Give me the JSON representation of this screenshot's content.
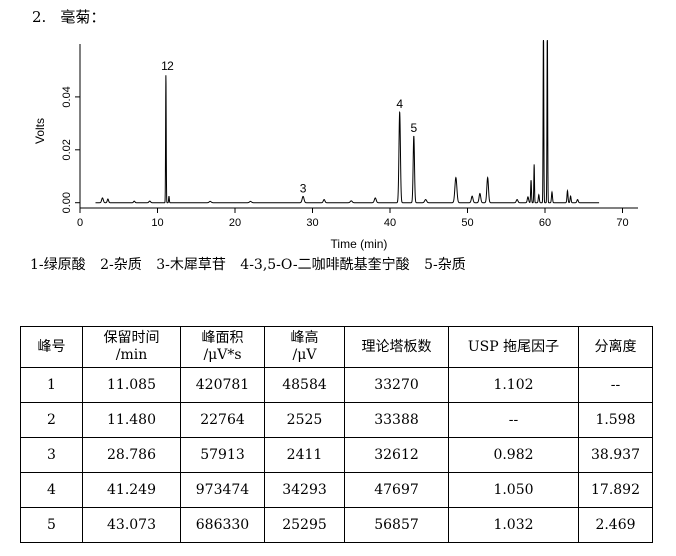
{
  "section": {
    "number": "2.",
    "title": "毫菊："
  },
  "chart_data": {
    "type": "line",
    "xlabel": "Time (min)",
    "ylabel": "Volts",
    "xlim": [
      0,
      72
    ],
    "ylim": [
      -0.002,
      0.06
    ],
    "x_ticks": [
      0,
      10,
      20,
      30,
      40,
      50,
      60,
      70
    ],
    "y_ticks": [
      0.0,
      0.02,
      0.04
    ],
    "y_tick_labels": [
      "0.00",
      "0.02",
      "0.04"
    ],
    "peak_labels": [
      {
        "text": "1",
        "x": 11.085,
        "y": 0.0486
      },
      {
        "text": "2",
        "x": 11.48,
        "y": 0.0486
      },
      {
        "text": "3",
        "x": 28.786,
        "y": 0.0024
      },
      {
        "text": "4",
        "x": 41.249,
        "y": 0.0343
      },
      {
        "text": "5",
        "x": 43.073,
        "y": 0.0253
      }
    ],
    "baseline": 0.0,
    "peaks": [
      {
        "rt": 2.9,
        "h": 0.0018,
        "w": 0.25
      },
      {
        "rt": 3.6,
        "h": 0.0014,
        "w": 0.2
      },
      {
        "rt": 7.0,
        "h": 0.0006,
        "w": 0.2
      },
      {
        "rt": 9.0,
        "h": 0.0006,
        "w": 0.25
      },
      {
        "rt": 11.085,
        "h": 0.0486,
        "w": 0.09
      },
      {
        "rt": 11.48,
        "h": 0.0025,
        "w": 0.1
      },
      {
        "rt": 16.8,
        "h": 0.0005,
        "w": 0.3
      },
      {
        "rt": 22.0,
        "h": 0.0005,
        "w": 0.3
      },
      {
        "rt": 28.786,
        "h": 0.0024,
        "w": 0.28
      },
      {
        "rt": 31.5,
        "h": 0.0012,
        "w": 0.25
      },
      {
        "rt": 35.0,
        "h": 0.0007,
        "w": 0.3
      },
      {
        "rt": 38.1,
        "h": 0.0018,
        "w": 0.28
      },
      {
        "rt": 41.249,
        "h": 0.0343,
        "w": 0.22
      },
      {
        "rt": 43.073,
        "h": 0.0253,
        "w": 0.2
      },
      {
        "rt": 44.6,
        "h": 0.0012,
        "w": 0.3
      },
      {
        "rt": 48.5,
        "h": 0.0095,
        "w": 0.3
      },
      {
        "rt": 50.6,
        "h": 0.0025,
        "w": 0.25
      },
      {
        "rt": 51.6,
        "h": 0.0035,
        "w": 0.25
      },
      {
        "rt": 52.6,
        "h": 0.0095,
        "w": 0.25
      },
      {
        "rt": 56.4,
        "h": 0.0012,
        "w": 0.25
      },
      {
        "rt": 57.8,
        "h": 0.0022,
        "w": 0.2
      },
      {
        "rt": 58.2,
        "h": 0.0085,
        "w": 0.12
      },
      {
        "rt": 58.6,
        "h": 0.0145,
        "w": 0.1
      },
      {
        "rt": 59.2,
        "h": 0.003,
        "w": 0.15
      },
      {
        "rt": 59.8,
        "h": 0.068,
        "w": 0.1
      },
      {
        "rt": 60.3,
        "h": 0.068,
        "w": 0.1
      },
      {
        "rt": 60.9,
        "h": 0.004,
        "w": 0.15
      },
      {
        "rt": 62.9,
        "h": 0.0045,
        "w": 0.15
      },
      {
        "rt": 63.3,
        "h": 0.0025,
        "w": 0.15
      },
      {
        "rt": 64.2,
        "h": 0.0012,
        "w": 0.2
      }
    ]
  },
  "legend_items": [
    "1-绿原酸",
    "2-杂质",
    "3-木犀草苷",
    "4-3,5-O-二咖啡酰基奎宁酸",
    "5-杂质"
  ],
  "table": {
    "headers": [
      [
        "峰号"
      ],
      [
        "保留时间",
        "/min"
      ],
      [
        "峰面积",
        "/μV*s"
      ],
      [
        "峰高",
        "/μV"
      ],
      [
        "理论塔板数"
      ],
      [
        "USP 拖尾因子"
      ],
      [
        "分离度"
      ]
    ],
    "rows": [
      [
        "1",
        "11.085",
        "420781",
        "48584",
        "33270",
        "1.102",
        "--"
      ],
      [
        "2",
        "11.480",
        "22764",
        "2525",
        "33388",
        "--",
        "1.598"
      ],
      [
        "3",
        "28.786",
        "57913",
        "2411",
        "32612",
        "0.982",
        "38.937"
      ],
      [
        "4",
        "41.249",
        "973474",
        "34293",
        "47697",
        "1.050",
        "17.892"
      ],
      [
        "5",
        "43.073",
        "686330",
        "25295",
        "56857",
        "1.032",
        "2.469"
      ]
    ]
  }
}
